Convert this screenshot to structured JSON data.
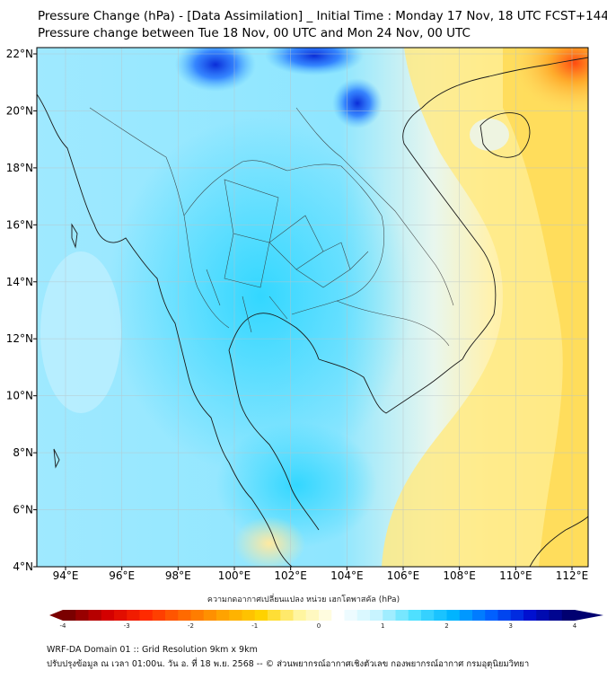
{
  "title_line1": "Pressure Change (hPa) - [Data Assimilation] _ Initial Time : Monday 17 Nov, 18 UTC FCST+144",
  "title_line2": "Pressure change between Tue 18 Nov, 00 UTC and Mon 24 Nov, 00 UTC",
  "lat_labels": [
    "22°N",
    "20°N",
    "18°N",
    "16°N",
    "14°N",
    "12°N",
    "10°N",
    "8°N",
    "6°N",
    "4°N"
  ],
  "lon_labels": [
    "94°E",
    "96°E",
    "98°E",
    "100°E",
    "102°E",
    "104°E",
    "106°E",
    "108°E",
    "110°E",
    "112°E"
  ],
  "colorbar": {
    "title": "ความกดอากาศเปลี่ยนแปลง หน่วย เฮกโตพาสคัล (hPa)",
    "ticks": [
      "-4",
      "-3",
      "-2",
      "-1",
      "0",
      "1",
      "2",
      "3",
      "4"
    ],
    "min": -4,
    "max": 4,
    "colors": [
      "#7a0000",
      "#d40000",
      "#ff2a00",
      "#ff6a00",
      "#ffa300",
      "#ffd200",
      "#fff5a0",
      "#ffffff",
      "#c8f4ff",
      "#4fe0ff",
      "#00b4ff",
      "#0060ff",
      "#0010d0",
      "#000070"
    ]
  },
  "footer_line1": "WRF-DA Domain 01 :: Grid Resolution 9km x 9km",
  "footer_line2": "ปรับปรุงข้อมูล ณ เวลา 01:00น. วัน อ. ที่ 18 พ.ย. 2568 -- © ส่วนพยากรณ์อากาศเชิงตัวเลข กองพยากรณ์อากาศ กรมอุตุนิยมวิทยา"
}
